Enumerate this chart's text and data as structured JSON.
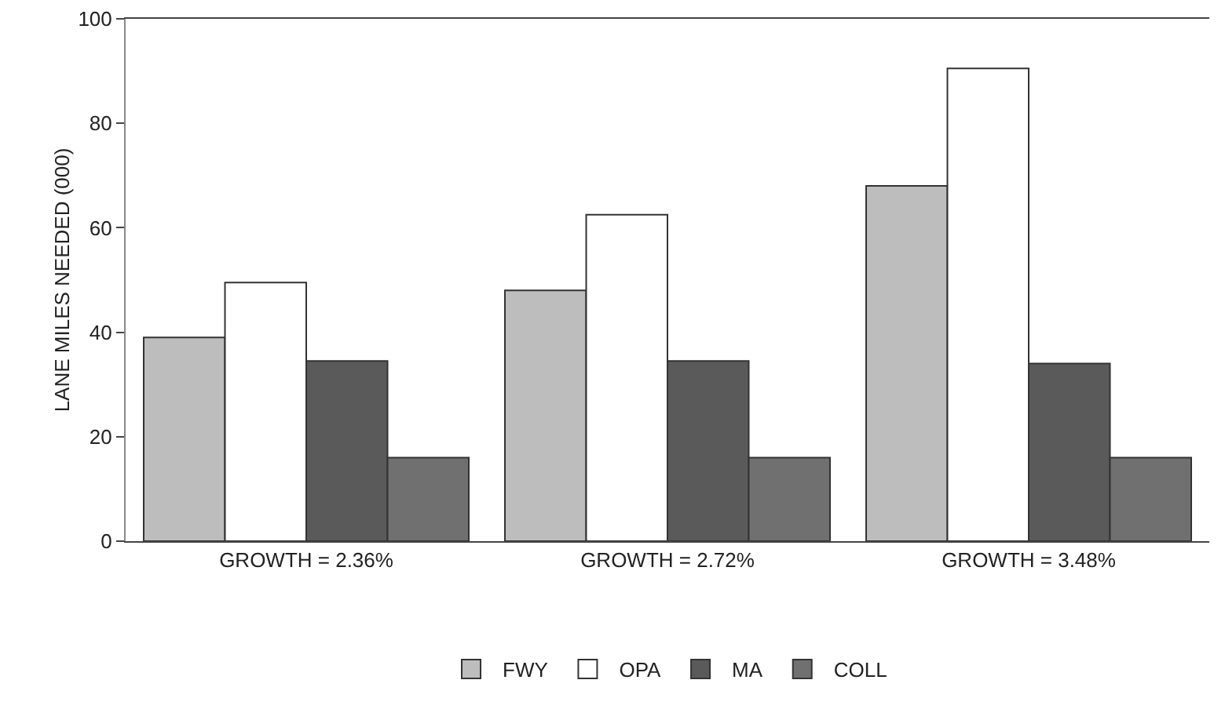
{
  "chart_data": {
    "type": "bar",
    "ylabel": "LANE MILES NEEDED (000)",
    "categories": [
      "GROWTH = 2.36%",
      "GROWTH = 2.72%",
      "GROWTH = 3.48%"
    ],
    "series": [
      {
        "name": "FWY",
        "color": "#bdbdbd",
        "values": [
          39,
          48,
          68
        ]
      },
      {
        "name": "OPA",
        "color": "#ffffff",
        "values": [
          49.5,
          62.5,
          90.5
        ]
      },
      {
        "name": "MA",
        "color": "#5a5a5a",
        "values": [
          34.5,
          34.5,
          34
        ]
      },
      {
        "name": "COLL",
        "color": "#707070",
        "values": [
          16,
          16,
          16
        ]
      }
    ],
    "ylim": [
      0,
      100
    ],
    "yticks": [
      0,
      20,
      40,
      60,
      80,
      100
    ],
    "grid": false,
    "legend": "bottom"
  }
}
